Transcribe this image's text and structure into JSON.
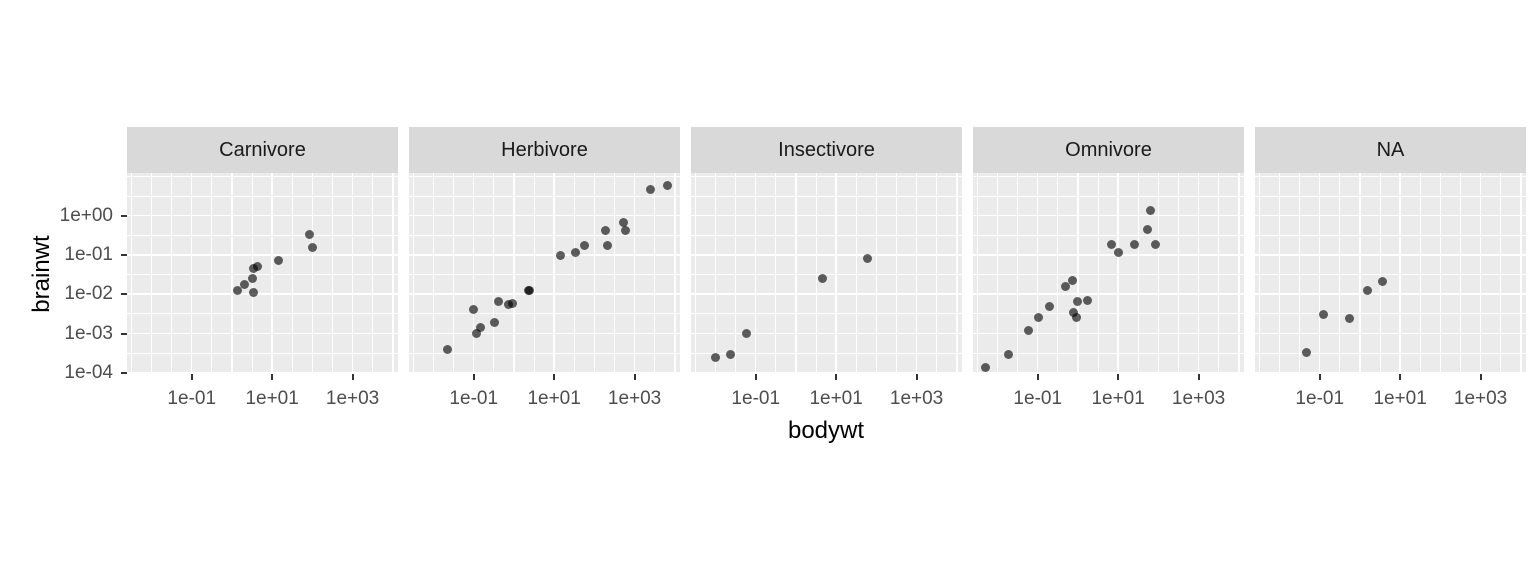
{
  "figure": {
    "background": "#FFFFFF",
    "panel_bg": "#EBEBEB",
    "strip_bg": "#D9D9D9",
    "grid_color": "#FFFFFF",
    "axis_text_color": "#4D4D4D",
    "strip_text_color": "#1A1A1A",
    "title_color": "#000000",
    "tick_mark_color": "#333333",
    "point_color": "#000000",
    "point_opacity": 0.62
  },
  "axes": {
    "x_ticks": [
      {
        "log10": -1,
        "label": "1e-01"
      },
      {
        "log10": 1,
        "label": "1e+01"
      },
      {
        "log10": 3,
        "label": "1e+03"
      }
    ],
    "y_ticks": [
      {
        "log10": 0,
        "label": "1e+00"
      },
      {
        "log10": -1,
        "label": "1e-01"
      },
      {
        "log10": -2,
        "label": "1e-02"
      },
      {
        "log10": -3,
        "label": "1e-03"
      },
      {
        "log10": -4,
        "label": "1e-04"
      }
    ]
  },
  "chart_data": {
    "type": "scatter",
    "title": "",
    "xlabel": "bodywt",
    "ylabel": "brainwt",
    "x_scale": "log10",
    "y_scale": "log10",
    "xlim_log10": [
      -2.61,
      4.13
    ],
    "ylim_log10": [
      -4.03,
      1.084
    ],
    "grid": true,
    "legend_position": "none",
    "facets": [
      {
        "label": "Carnivore",
        "points": [
          [
            1.4,
            0.0125
          ],
          [
            2.0,
            0.0175
          ],
          [
            3.3,
            0.0256
          ],
          [
            3.385,
            0.0445
          ],
          [
            3.5,
            0.0108
          ],
          [
            4.235,
            0.0504
          ],
          [
            14.0,
            0.07
          ],
          [
            85.0,
            0.325
          ],
          [
            100.0,
            0.157
          ]
        ]
      },
      {
        "label": "Herbivore",
        "points": [
          [
            0.022,
            0.0004
          ],
          [
            0.101,
            0.004
          ],
          [
            0.12,
            0.001
          ],
          [
            0.15,
            0.0014
          ],
          [
            0.32,
            0.0019
          ],
          [
            0.42,
            0.0064
          ],
          [
            0.728,
            0.0055
          ],
          [
            0.92,
            0.0057
          ],
          [
            2.35,
            0.0123
          ],
          [
            2.5,
            0.0121
          ],
          [
            14.8,
            0.0982
          ],
          [
            33.5,
            0.115
          ],
          [
            55.5,
            0.175
          ],
          [
            187.0,
            0.419
          ],
          [
            207.5,
            0.169
          ],
          [
            521.0,
            0.655
          ],
          [
            600.0,
            0.423
          ],
          [
            2547.0,
            4.603
          ],
          [
            6654.0,
            5.712
          ]
        ]
      },
      {
        "label": "Insectivore",
        "points": [
          [
            0.01,
            0.00025
          ],
          [
            0.023,
            0.0003
          ],
          [
            0.06,
            0.001
          ],
          [
            4.5,
            0.025
          ],
          [
            60.0,
            0.081
          ]
        ]
      },
      {
        "label": "Omnivore",
        "points": [
          [
            0.005,
            0.00014
          ],
          [
            0.019,
            0.00029
          ],
          [
            0.06,
            0.0012
          ],
          [
            0.104,
            0.0025
          ],
          [
            0.2,
            0.005
          ],
          [
            0.48,
            0.0155
          ],
          [
            0.743,
            0.022
          ],
          [
            0.77,
            0.0035
          ],
          [
            0.9,
            0.0026
          ],
          [
            1.0,
            0.0066
          ],
          [
            1.7,
            0.0068
          ],
          [
            6.8,
            0.179
          ],
          [
            10.0,
            0.115
          ],
          [
            25.235,
            0.18
          ],
          [
            52.2,
            0.44
          ],
          [
            62.0,
            1.32
          ],
          [
            86.25,
            0.18
          ]
        ]
      },
      {
        "label": "NA",
        "points": [
          [
            0.048,
            0.00033
          ],
          [
            0.122,
            0.003
          ],
          [
            0.55,
            0.0024
          ],
          [
            1.5,
            0.0125
          ],
          [
            3.6,
            0.021
          ]
        ]
      }
    ]
  }
}
